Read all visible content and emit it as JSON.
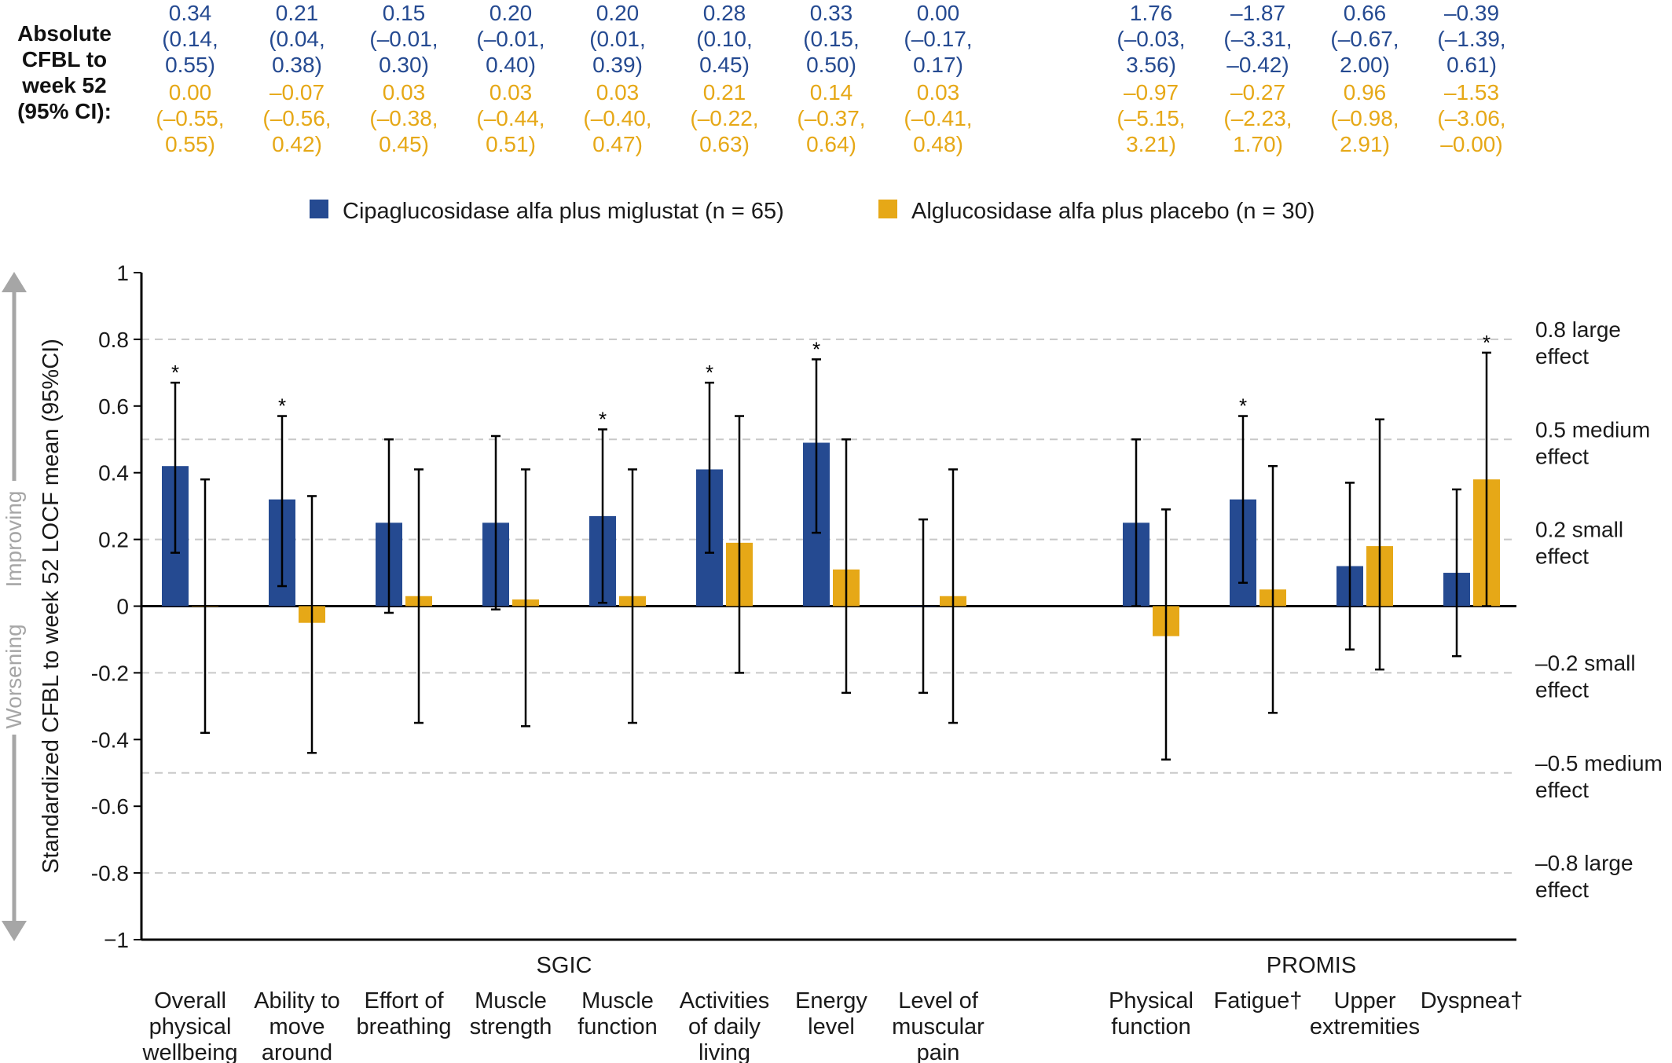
{
  "abs_label": [
    "Absolute",
    "CFBL to",
    "week 52",
    "(95% CI):"
  ],
  "legend": [
    {
      "name": "Cipaglucosidase alfa plus miglustat (n = 65)",
      "color": "#254a91"
    },
    {
      "name": "Alglucosidase alfa plus placebo (n = 30)",
      "color": "#e6a817"
    }
  ],
  "axis": {
    "ylabel": "Standardized CFBL to week 52 LOCF mean (95%CI)",
    "improving": "Improving",
    "worsening": "Worsening",
    "ylim": [
      -1,
      1
    ],
    "yticks": [
      "1",
      "0.8",
      "0.6",
      "0.4",
      "0.2",
      "0",
      "-0.2",
      "-0.4",
      "-0.6",
      "-0.8",
      "−1"
    ]
  },
  "effect_sizes": [
    {
      "value": 0.8,
      "line1": "0.8 large",
      "line2": "effect"
    },
    {
      "value": 0.5,
      "line1": "0.5 medium",
      "line2": "effect"
    },
    {
      "value": 0.2,
      "line1": "0.2 small",
      "line2": "effect"
    },
    {
      "value": -0.2,
      "line1": "–0.2 small",
      "line2": "effect"
    },
    {
      "value": -0.5,
      "line1": "–0.5 medium",
      "line2": "effect"
    },
    {
      "value": -0.8,
      "line1": "–0.8 large",
      "line2": "effect"
    }
  ],
  "groups": [
    {
      "label": "SGIC"
    },
    {
      "label": "PROMIS"
    }
  ],
  "chart_data": {
    "type": "bar",
    "title": "",
    "ylabel": "Standardized CFBL to week 52 LOCF mean (95%CI)",
    "ylim": [
      -1,
      1
    ],
    "grid": "dashed reference lines at ±0.2, ±0.5, ±0.8",
    "legend_position": "top",
    "categories": [
      {
        "group": 0,
        "lines": [
          "Overall",
          "physical",
          "wellbeing"
        ],
        "blue": {
          "mean": 0.42,
          "lo": 0.16,
          "hi": 0.67,
          "star": true
        },
        "gold": {
          "mean": 0.0,
          "lo": -0.38,
          "hi": 0.38,
          "star": false
        },
        "abs_blue": [
          "0.34",
          "(0.14,",
          "0.55)"
        ],
        "abs_gold": [
          "0.00",
          "(–0.55,",
          "0.55)"
        ]
      },
      {
        "group": 0,
        "lines": [
          "Ability to",
          "move",
          "around"
        ],
        "blue": {
          "mean": 0.32,
          "lo": 0.06,
          "hi": 0.57,
          "star": true
        },
        "gold": {
          "mean": -0.05,
          "lo": -0.44,
          "hi": 0.33,
          "star": false
        },
        "abs_blue": [
          "0.21",
          "(0.04,",
          "0.38)"
        ],
        "abs_gold": [
          "–0.07",
          "(–0.56,",
          "0.42)"
        ]
      },
      {
        "group": 0,
        "lines": [
          "Effort of",
          "breathing"
        ],
        "blue": {
          "mean": 0.25,
          "lo": -0.02,
          "hi": 0.5,
          "star": false
        },
        "gold": {
          "mean": 0.03,
          "lo": -0.35,
          "hi": 0.41,
          "star": false
        },
        "abs_blue": [
          "0.15",
          "(–0.01,",
          "0.30)"
        ],
        "abs_gold": [
          "0.03",
          "(–0.38,",
          "0.45)"
        ]
      },
      {
        "group": 0,
        "lines": [
          "Muscle",
          "strength"
        ],
        "blue": {
          "mean": 0.25,
          "lo": -0.01,
          "hi": 0.51,
          "star": false
        },
        "gold": {
          "mean": 0.02,
          "lo": -0.36,
          "hi": 0.41,
          "star": false
        },
        "abs_blue": [
          "0.20",
          "(–0.01,",
          "0.40)"
        ],
        "abs_gold": [
          "0.03",
          "(–0.44,",
          "0.51)"
        ]
      },
      {
        "group": 0,
        "lines": [
          "Muscle",
          "function"
        ],
        "blue": {
          "mean": 0.27,
          "lo": 0.01,
          "hi": 0.53,
          "star": true
        },
        "gold": {
          "mean": 0.03,
          "lo": -0.35,
          "hi": 0.41,
          "star": false
        },
        "abs_blue": [
          "0.20",
          "(0.01,",
          "0.39)"
        ],
        "abs_gold": [
          "0.03",
          "(–0.40,",
          "0.47)"
        ]
      },
      {
        "group": 0,
        "lines": [
          "Activities",
          "of daily",
          "living"
        ],
        "blue": {
          "mean": 0.41,
          "lo": 0.16,
          "hi": 0.67,
          "star": true
        },
        "gold": {
          "mean": 0.19,
          "lo": -0.2,
          "hi": 0.57,
          "star": false
        },
        "abs_blue": [
          "0.28",
          "(0.10,",
          "0.45)"
        ],
        "abs_gold": [
          "0.21",
          "(–0.22,",
          "0.63)"
        ]
      },
      {
        "group": 0,
        "lines": [
          "Energy",
          "level"
        ],
        "blue": {
          "mean": 0.49,
          "lo": 0.22,
          "hi": 0.74,
          "star": true
        },
        "gold": {
          "mean": 0.11,
          "lo": -0.26,
          "hi": 0.5,
          "star": false
        },
        "abs_blue": [
          "0.33",
          "(0.15,",
          "0.50)"
        ],
        "abs_gold": [
          "0.14",
          "(–0.37,",
          "0.64)"
        ]
      },
      {
        "group": 0,
        "lines": [
          "Level of",
          "muscular",
          "pain"
        ],
        "blue": {
          "mean": 0.0,
          "lo": -0.26,
          "hi": 0.26,
          "star": false
        },
        "gold": {
          "mean": 0.03,
          "lo": -0.35,
          "hi": 0.41,
          "star": false
        },
        "abs_blue": [
          "0.00",
          "(–0.17,",
          "0.17)"
        ],
        "abs_gold": [
          "0.03",
          "(–0.41,",
          "0.48)"
        ]
      },
      {
        "group": 1,
        "lines": [
          "Physical",
          "function"
        ],
        "blue": {
          "mean": 0.25,
          "lo": 0.0,
          "hi": 0.5,
          "star": false
        },
        "gold": {
          "mean": -0.09,
          "lo": -0.46,
          "hi": 0.29,
          "star": false
        },
        "abs_blue": [
          "1.76",
          "(–0.03,",
          "3.56)"
        ],
        "abs_gold": [
          "–0.97",
          "(–5.15,",
          "3.21)"
        ]
      },
      {
        "group": 1,
        "lines": [
          "Fatigue†"
        ],
        "blue": {
          "mean": 0.32,
          "lo": 0.07,
          "hi": 0.57,
          "star": true
        },
        "gold": {
          "mean": 0.05,
          "lo": -0.32,
          "hi": 0.42,
          "star": false
        },
        "abs_blue": [
          "–1.87",
          "(–3.31,",
          "–0.42)"
        ],
        "abs_gold": [
          "–0.27",
          "(–2.23,",
          "1.70)"
        ]
      },
      {
        "group": 1,
        "lines": [
          "Upper",
          "extremities"
        ],
        "blue": {
          "mean": 0.12,
          "lo": -0.13,
          "hi": 0.37,
          "star": false
        },
        "gold": {
          "mean": 0.18,
          "lo": -0.19,
          "hi": 0.56,
          "star": false
        },
        "abs_blue": [
          "0.66",
          "(–0.67,",
          "2.00)"
        ],
        "abs_gold": [
          "0.96",
          "(–0.98,",
          "2.91)"
        ]
      },
      {
        "group": 1,
        "lines": [
          "Dyspnea†"
        ],
        "blue": {
          "mean": 0.1,
          "lo": -0.15,
          "hi": 0.35,
          "star": false
        },
        "gold": {
          "mean": 0.38,
          "lo": 0.0,
          "hi": 0.76,
          "star": true
        },
        "abs_blue": [
          "–0.39",
          "(–1.39,",
          "0.61)"
        ],
        "abs_gold": [
          "–1.53",
          "(–3.06,",
          "–0.00)"
        ]
      }
    ]
  }
}
